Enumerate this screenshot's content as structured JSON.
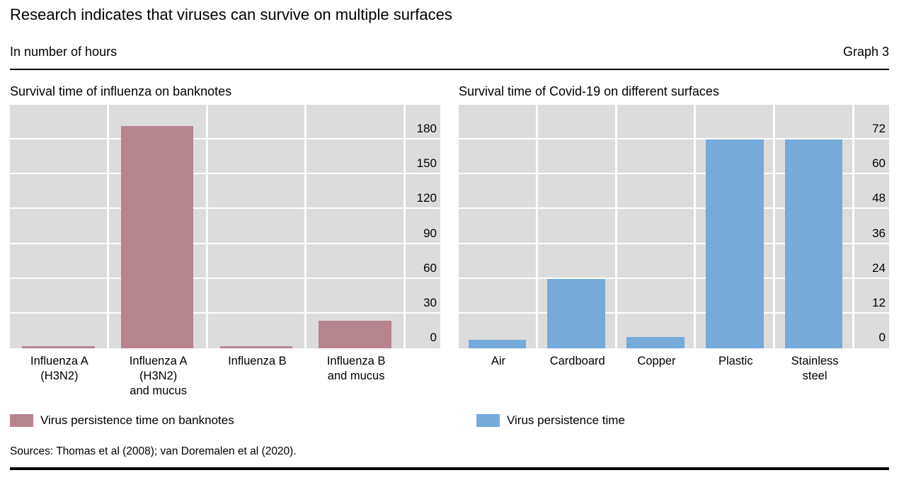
{
  "header": {
    "title": "Research indicates that viruses can survive on multiple surfaces",
    "subtitle": "In number of hours",
    "graph_label": "Graph 3"
  },
  "colors": {
    "plot_background": "#dcdcdc",
    "gridline": "#ffffff",
    "rule": "#000000",
    "influenza_bar_color": "#b5848f",
    "covid_bar_color": "#75aad9"
  },
  "chart_data": [
    {
      "type": "bar",
      "title": "Survival time of influenza on banknotes",
      "categories": [
        "Influenza A\n(H3N2)",
        "Influenza A\n(H3N2)\nand mucus",
        "Influenza B",
        "Influenza B\nand mucus"
      ],
      "values": [
        2,
        192,
        2,
        24
      ],
      "unit": "hours",
      "yticks": [
        0,
        30,
        60,
        90,
        120,
        150,
        180
      ],
      "ylim": [
        0,
        210
      ],
      "y_axis_side": "right",
      "grid": true,
      "bar_color": "#b5848f",
      "legend": "Virus persistence time on banknotes"
    },
    {
      "type": "bar",
      "title": "Survival time of Covid-19 on different surfaces",
      "categories": [
        "Air",
        "Cardboard",
        "Copper",
        "Plastic",
        "Stainless\nsteel"
      ],
      "values": [
        3,
        24,
        4,
        72,
        72
      ],
      "unit": "hours",
      "yticks": [
        0,
        12,
        24,
        36,
        48,
        60,
        72
      ],
      "ylim": [
        0,
        84
      ],
      "y_axis_side": "right",
      "grid": true,
      "bar_color": "#75aad9",
      "legend": "Virus persistence time"
    }
  ],
  "footer": {
    "sources": "Sources: Thomas et al (2008); van Doremalen et al (2020)."
  }
}
